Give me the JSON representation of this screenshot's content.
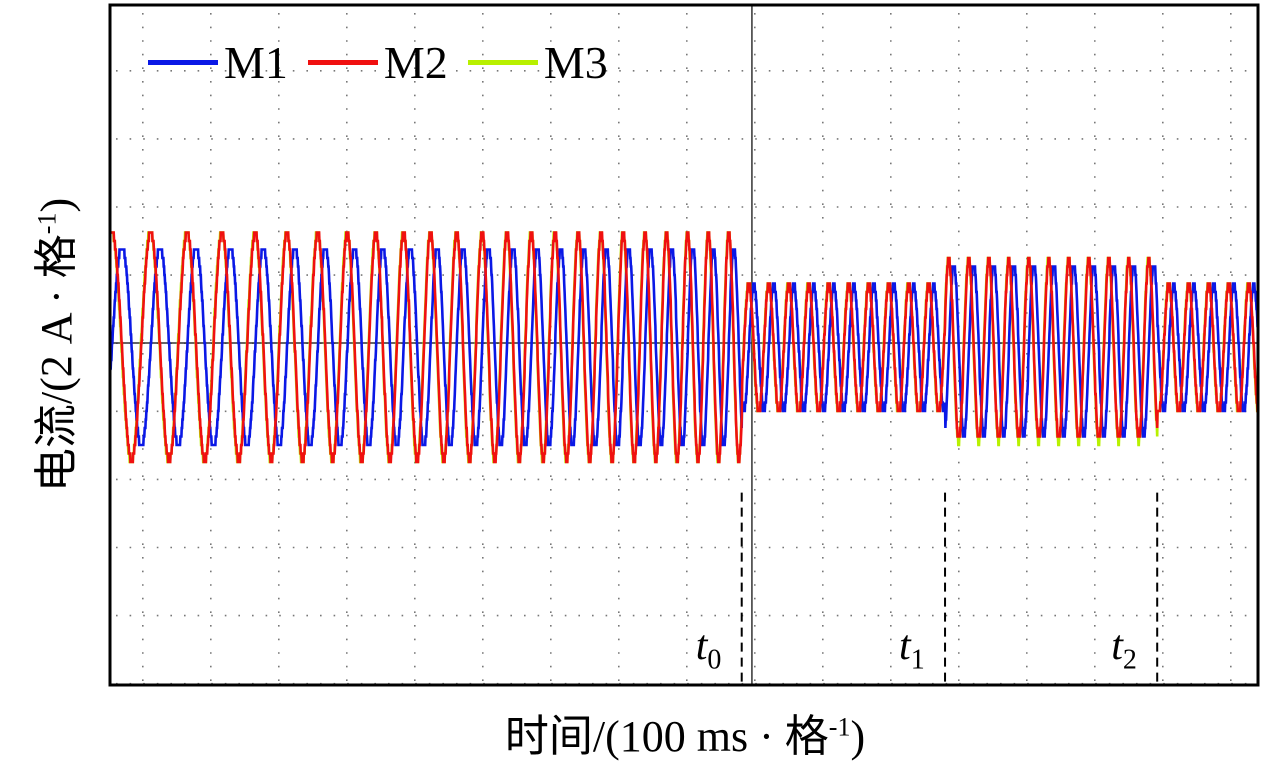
{
  "chart_data": {
    "type": "line",
    "title": "",
    "xlabel": "时间/(100 ms · 格",
    "xlabel_sup": "-1",
    "xlabel_close": ")",
    "ylabel": "电流/(2 A · 格",
    "ylabel_sup": "-1",
    "ylabel_close": ")",
    "x_unit": "ms",
    "y_unit": "A",
    "xlim": [
      0,
      1688
    ],
    "ylim": [
      -10,
      10
    ],
    "x_div": 100,
    "y_div": 2,
    "grid": true,
    "crosshair_x_ms": 944,
    "legend_position": "top-left",
    "series": [
      {
        "name": "M1",
        "color": "#0a18e6",
        "phase_deg": -90
      },
      {
        "name": "M2",
        "color": "#f01010",
        "phase_deg": 0
      },
      {
        "name": "M3",
        "color": "#b8f000",
        "phase_deg": 4
      }
    ],
    "segments": [
      {
        "from_ms": 0,
        "to_ms": 929,
        "freq_hz_start": 17,
        "freq_hz_end": 34,
        "amp_A": {
          "M1": 2.95,
          "M2": 3.35,
          "M3": 3.4
        },
        "offset_A": -0.1
      },
      {
        "from_ms": 929,
        "to_ms": 1228,
        "freq_hz_start": 34,
        "freq_hz_end": 34,
        "amp_A": {
          "M1": 1.85,
          "M2": 1.9,
          "M3": 1.95
        },
        "offset_A": -0.15
      },
      {
        "from_ms": 1228,
        "to_ms": 1540,
        "freq_hz_start": 34,
        "freq_hz_end": 34,
        "amp_A": {
          "M1": 2.55,
          "M2": 2.65,
          "M3": 2.7
        },
        "offset_A": -0.2
      },
      {
        "from_ms": 1540,
        "to_ms": 1688,
        "freq_hz_start": 34,
        "freq_hz_end": 34,
        "amp_A": {
          "M1": 1.85,
          "M2": 1.9,
          "M3": 1.95
        },
        "offset_A": -0.15
      }
    ],
    "markers": [
      {
        "label": "t",
        "sub": "0",
        "x_ms": 929
      },
      {
        "label": "t",
        "sub": "1",
        "x_ms": 1228
      },
      {
        "label": "t",
        "sub": "2",
        "x_ms": 1540
      }
    ]
  }
}
